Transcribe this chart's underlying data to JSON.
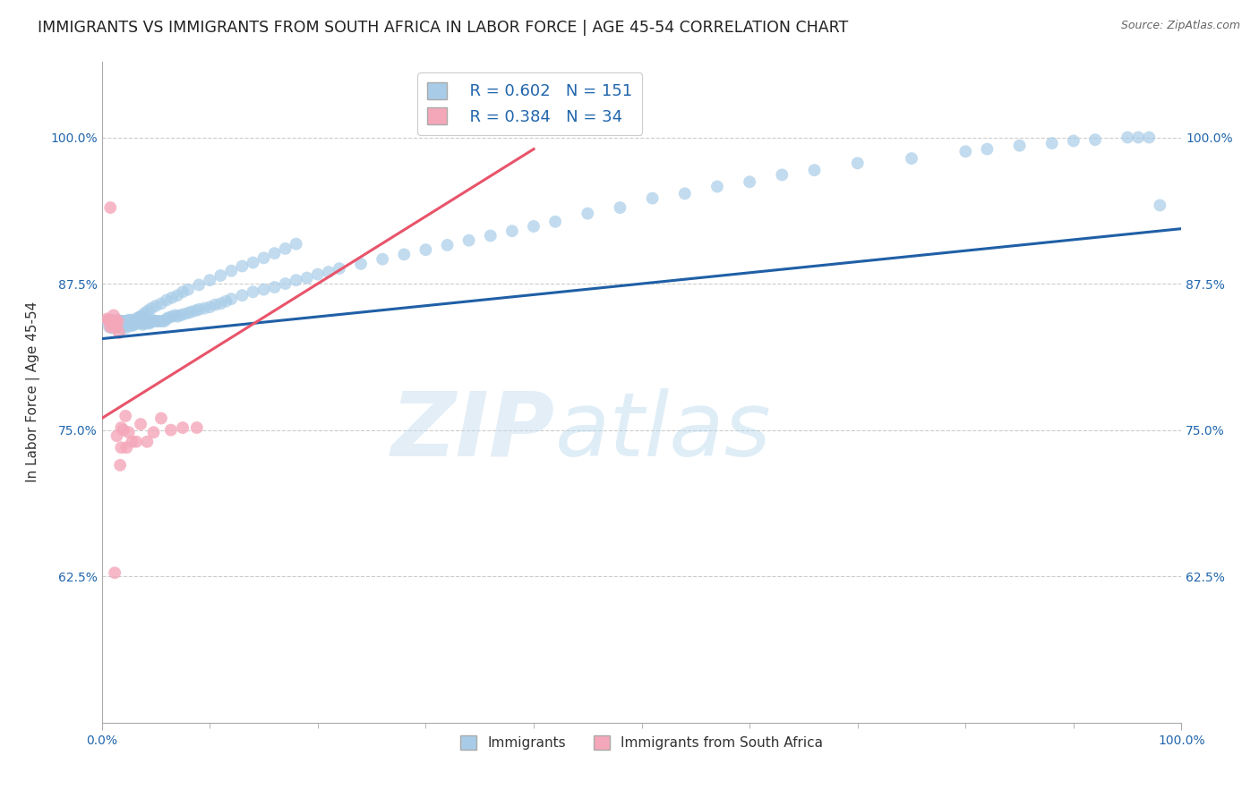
{
  "title": "IMMIGRANTS VS IMMIGRANTS FROM SOUTH AFRICA IN LABOR FORCE | AGE 45-54 CORRELATION CHART",
  "source": "Source: ZipAtlas.com",
  "ylabel": "In Labor Force | Age 45-54",
  "legend_label_1": "Immigrants",
  "legend_label_2": "Immigrants from South Africa",
  "R1": 0.602,
  "N1": 151,
  "R2": 0.384,
  "N2": 34,
  "color_blue": "#a8cce8",
  "color_pink": "#f4a7b9",
  "color_blue_line": "#1f5fa6",
  "color_pink_line": "#e8546a",
  "color_text_blue": "#2166ac",
  "watermark_zip": "ZIP",
  "watermark_atlas": "atlas",
  "background_color": "#ffffff",
  "grid_color": "#cccccc",
  "title_fontsize": 12.5,
  "axis_label_fontsize": 11,
  "tick_fontsize": 10,
  "legend_fontsize": 13,
  "xlim": [
    0.0,
    1.0
  ],
  "ylim": [
    0.5,
    1.065
  ],
  "y_tick_values": [
    0.625,
    0.75,
    0.875,
    1.0
  ],
  "blue_x": [
    0.005,
    0.007,
    0.008,
    0.009,
    0.01,
    0.01,
    0.011,
    0.012,
    0.013,
    0.013,
    0.014,
    0.015,
    0.015,
    0.016,
    0.017,
    0.018,
    0.018,
    0.019,
    0.02,
    0.02,
    0.021,
    0.022,
    0.022,
    0.023,
    0.024,
    0.025,
    0.025,
    0.026,
    0.027,
    0.028,
    0.028,
    0.029,
    0.03,
    0.031,
    0.032,
    0.033,
    0.034,
    0.035,
    0.036,
    0.037,
    0.038,
    0.039,
    0.04,
    0.041,
    0.042,
    0.043,
    0.044,
    0.045,
    0.046,
    0.047,
    0.048,
    0.05,
    0.052,
    0.054,
    0.056,
    0.058,
    0.06,
    0.062,
    0.065,
    0.068,
    0.07,
    0.073,
    0.076,
    0.08,
    0.083,
    0.087,
    0.09,
    0.095,
    0.1,
    0.105,
    0.11,
    0.115,
    0.12,
    0.13,
    0.14,
    0.15,
    0.16,
    0.17,
    0.18,
    0.19,
    0.2,
    0.21,
    0.22,
    0.24,
    0.26,
    0.28,
    0.3,
    0.32,
    0.34,
    0.36,
    0.38,
    0.4,
    0.42,
    0.45,
    0.48,
    0.51,
    0.54,
    0.57,
    0.6,
    0.63,
    0.66,
    0.7,
    0.75,
    0.8,
    0.82,
    0.85,
    0.88,
    0.9,
    0.92,
    0.95,
    0.96,
    0.97,
    0.98,
    0.012,
    0.013,
    0.015,
    0.016,
    0.017,
    0.019,
    0.02,
    0.022,
    0.023,
    0.024,
    0.025,
    0.027,
    0.028,
    0.03,
    0.032,
    0.034,
    0.036,
    0.038,
    0.04,
    0.043,
    0.046,
    0.05,
    0.055,
    0.06,
    0.065,
    0.07,
    0.075,
    0.08,
    0.09,
    0.1,
    0.11,
    0.12,
    0.13,
    0.14,
    0.15,
    0.16,
    0.17,
    0.18
  ],
  "blue_y": [
    0.843,
    0.838,
    0.841,
    0.844,
    0.84,
    0.837,
    0.842,
    0.839,
    0.843,
    0.838,
    0.841,
    0.844,
    0.839,
    0.843,
    0.84,
    0.837,
    0.842,
    0.84,
    0.843,
    0.839,
    0.842,
    0.84,
    0.837,
    0.843,
    0.841,
    0.839,
    0.844,
    0.841,
    0.84,
    0.843,
    0.839,
    0.842,
    0.84,
    0.843,
    0.842,
    0.841,
    0.844,
    0.843,
    0.842,
    0.841,
    0.84,
    0.843,
    0.842,
    0.841,
    0.844,
    0.843,
    0.841,
    0.842,
    0.843,
    0.844,
    0.843,
    0.843,
    0.843,
    0.843,
    0.843,
    0.843,
    0.845,
    0.846,
    0.847,
    0.848,
    0.847,
    0.848,
    0.849,
    0.85,
    0.851,
    0.852,
    0.853,
    0.854,
    0.855,
    0.857,
    0.858,
    0.86,
    0.862,
    0.865,
    0.868,
    0.87,
    0.872,
    0.875,
    0.878,
    0.88,
    0.883,
    0.885,
    0.888,
    0.892,
    0.896,
    0.9,
    0.904,
    0.908,
    0.912,
    0.916,
    0.92,
    0.924,
    0.928,
    0.935,
    0.94,
    0.948,
    0.952,
    0.958,
    0.962,
    0.968,
    0.972,
    0.978,
    0.982,
    0.988,
    0.99,
    0.993,
    0.995,
    0.997,
    0.998,
    1.0,
    1.0,
    1.0,
    0.942,
    0.843,
    0.843,
    0.84,
    0.843,
    0.841,
    0.843,
    0.843,
    0.84,
    0.843,
    0.842,
    0.843,
    0.844,
    0.843,
    0.843,
    0.845,
    0.846,
    0.847,
    0.848,
    0.85,
    0.852,
    0.854,
    0.856,
    0.858,
    0.861,
    0.863,
    0.865,
    0.868,
    0.87,
    0.874,
    0.878,
    0.882,
    0.886,
    0.89,
    0.893,
    0.897,
    0.901,
    0.905,
    0.909
  ],
  "pink_x": [
    0.005,
    0.006,
    0.007,
    0.007,
    0.008,
    0.009,
    0.01,
    0.01,
    0.011,
    0.012,
    0.013,
    0.014,
    0.015,
    0.016,
    0.017,
    0.018,
    0.02,
    0.022,
    0.025,
    0.028,
    0.032,
    0.036,
    0.042,
    0.048,
    0.055,
    0.064,
    0.075,
    0.088,
    0.008,
    0.01,
    0.012,
    0.014,
    0.018,
    0.023
  ],
  "pink_y": [
    0.845,
    0.844,
    0.843,
    0.843,
    0.94,
    0.84,
    0.84,
    0.843,
    0.848,
    0.838,
    0.843,
    0.838,
    0.843,
    0.833,
    0.72,
    0.735,
    0.75,
    0.762,
    0.748,
    0.74,
    0.74,
    0.755,
    0.74,
    0.748,
    0.76,
    0.75,
    0.752,
    0.752,
    0.838,
    0.84,
    0.628,
    0.745,
    0.752,
    0.735
  ],
  "blue_line_x0": 0.0,
  "blue_line_x1": 1.0,
  "blue_line_y0": 0.828,
  "blue_line_y1": 0.922,
  "pink_line_x0": 0.0,
  "pink_line_x1": 0.4,
  "pink_line_y0": 0.76,
  "pink_line_y1": 0.99
}
